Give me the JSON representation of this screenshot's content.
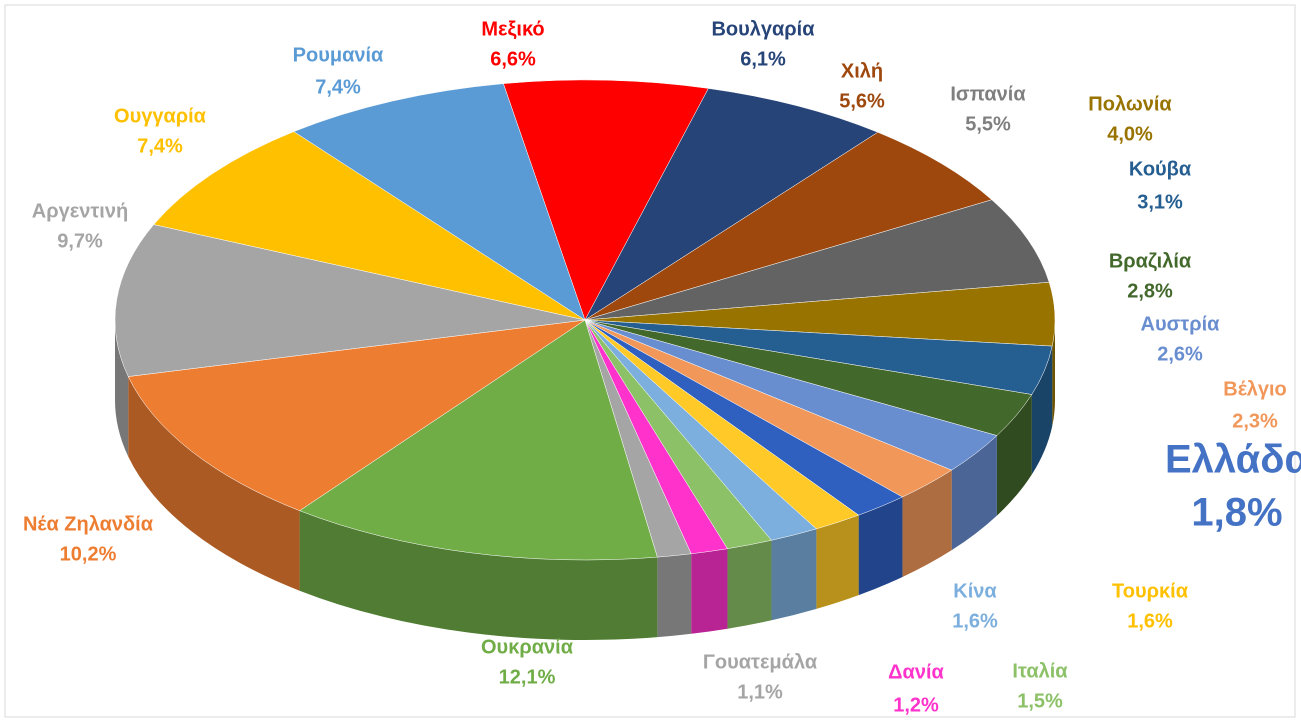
{
  "chart_data": {
    "type": "pie",
    "categories": [
      "Μεξικό",
      "Βουλγαρία",
      "Χιλή",
      "Ισπανία",
      "Πολωνία",
      "Κούβα",
      "Βραζιλία",
      "Αυστρία",
      "Βέλγιο",
      "Ελλάδα",
      "Τουρκία",
      "Κίνα",
      "Ιταλία",
      "Δανία",
      "Γουατεμάλα",
      "Ουκρανία",
      "Νέα Ζηλανδία",
      "Αργεντινή",
      "Ουγγαρία",
      "Ρουμανία"
    ],
    "values": [
      6.6,
      6.1,
      5.6,
      5.5,
      4.0,
      3.1,
      2.8,
      2.6,
      2.3,
      1.8,
      1.6,
      1.6,
      1.5,
      1.2,
      1.1,
      12.1,
      10.2,
      9.7,
      7.4,
      7.4
    ],
    "value_labels": [
      "6,6%",
      "6,1%",
      "5,6%",
      "5,5%",
      "4,0%",
      "3,1%",
      "2,8%",
      "2,6%",
      "2,3%",
      "1,8%",
      "1,6%",
      "1,6%",
      "1,5%",
      "1,2%",
      "1,1%",
      "12,1%",
      "10,2%",
      "9,7%",
      "7,4%",
      "7,4%"
    ],
    "colors": [
      "#ff0000",
      "#264478",
      "#9e480e",
      "#636363",
      "#997300",
      "#255e91",
      "#43682b",
      "#698ed0",
      "#f1975a",
      "#2f5fbf",
      "#ffc928",
      "#7cafdd",
      "#8cc168",
      "#ff33cc",
      "#a5a5a5",
      "#70ad47",
      "#ed7d31",
      "#a5a5a5",
      "#ffc000",
      "#5b9bd5"
    ]
  }
}
